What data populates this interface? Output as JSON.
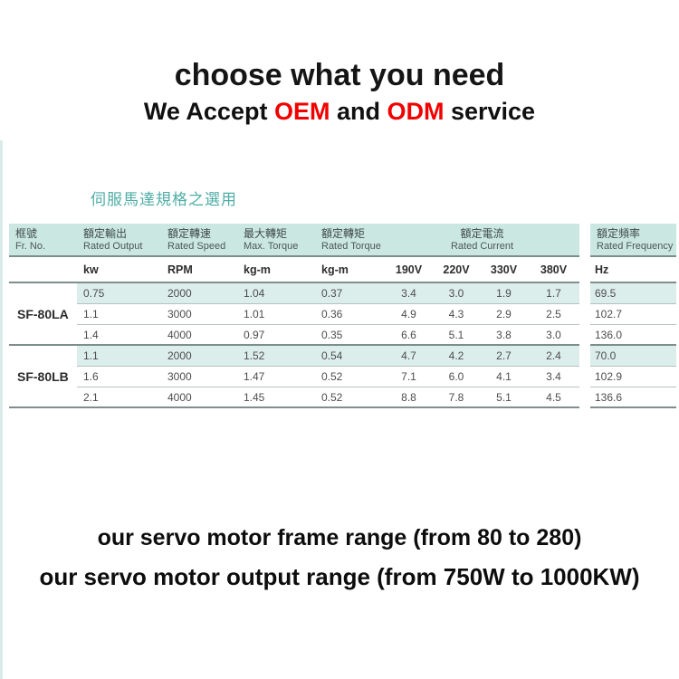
{
  "header": {
    "title": "choose what you need",
    "subtitle": {
      "pre": "We Accept ",
      "oem": "OEM",
      "mid": " and ",
      "odm": "ODM",
      "post": " service"
    }
  },
  "section": {
    "heading_zh": "伺服馬達規格之選用"
  },
  "table": {
    "columns": [
      {
        "zh": "框號",
        "en": "Fr. No."
      },
      {
        "zh": "額定輸出",
        "en": "Rated Output"
      },
      {
        "zh": "額定轉速",
        "en": "Rated Speed"
      },
      {
        "zh": "最大轉矩",
        "en": "Max. Torque"
      },
      {
        "zh": "額定轉矩",
        "en": "Rated Torque"
      },
      {
        "zh": "額定電流",
        "en": "Rated Current"
      },
      {
        "zh": "額定頻率",
        "en": "Rated Frequency"
      }
    ],
    "units": [
      "kw",
      "RPM",
      "kg-m",
      "kg-m",
      "190V",
      "220V",
      "330V",
      "380V",
      "Hz"
    ],
    "groups": [
      {
        "frame": "SF-80LA",
        "rows": [
          [
            "0.75",
            "2000",
            "1.04",
            "0.37",
            "3.4",
            "3.0",
            "1.9",
            "1.7",
            "69.5"
          ],
          [
            "1.1",
            "3000",
            "1.01",
            "0.36",
            "4.9",
            "4.3",
            "2.9",
            "2.5",
            "102.7"
          ],
          [
            "1.4",
            "4000",
            "0.97",
            "0.35",
            "6.6",
            "5.1",
            "3.8",
            "3.0",
            "136.0"
          ]
        ]
      },
      {
        "frame": "SF-80LB",
        "rows": [
          [
            "1.1",
            "2000",
            "1.52",
            "0.54",
            "4.7",
            "4.2",
            "2.7",
            "2.4",
            "70.0"
          ],
          [
            "1.6",
            "3000",
            "1.47",
            "0.52",
            "7.1",
            "6.0",
            "4.1",
            "3.4",
            "102.9"
          ],
          [
            "2.1",
            "4000",
            "1.45",
            "0.52",
            "8.8",
            "7.8",
            "5.1",
            "4.5",
            "136.6"
          ]
        ]
      }
    ]
  },
  "footer": {
    "line1": "our servo motor frame range (from 80 to 280)",
    "line2": "our servo motor output range (from 750W to 1000KW)"
  },
  "colors": {
    "accent_teal_text": "#4fada6",
    "accent_red": "#f20000",
    "table_header_bg": "#cbe7e2",
    "row_highlight_bg": "#dceeeb",
    "dark_rule": "#7e8e8c",
    "light_rule": "#b5c2c0"
  }
}
